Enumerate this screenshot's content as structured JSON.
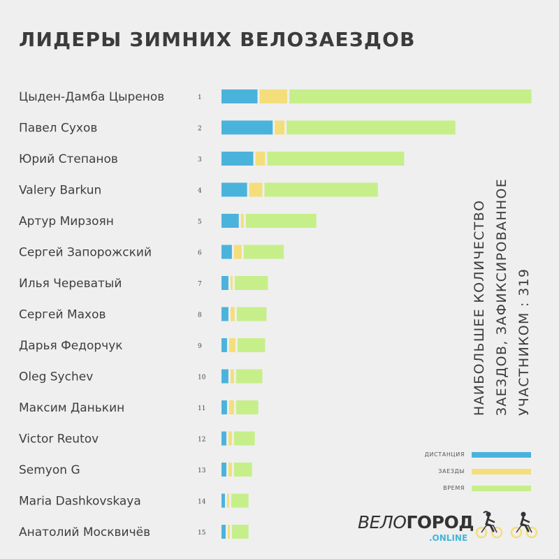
{
  "title": "ЛИДЕРЫ ЗИМНИХ ВЕЛОЗАЕЗДОВ",
  "side_note": [
    "НАИБОЛЬШЕЕ КОЛИЧЕСТВО",
    "ЗАЕЗДОВ, ЗАФИКСИРОВАННОЕ",
    "УЧАСТНИКОМ : 319"
  ],
  "colors": {
    "distance": "#4ab3dc",
    "rides": "#f4de7b",
    "time": "#c6ef8a",
    "background": "#efefef"
  },
  "logo": {
    "part1": "ВЕЛО",
    "part2": "ГОРОД",
    "sub": ".ONLINE"
  },
  "icons": [
    "cyclist-female-icon",
    "cyclist-male-icon"
  ],
  "chart_data": {
    "type": "bar",
    "orientation": "horizontal",
    "stacked": true,
    "title": "ЛИДЕРЫ ЗИМНИХ ВЕЛОЗАЕЗДОВ",
    "legend_position": "bottom-right",
    "legend": [
      "ДИСТАНЦИЯ",
      "ЗАЕЗДЫ",
      "ВРЕМЯ"
    ],
    "categories": [
      "Цыден-Дамба Цыренов",
      "Павел Сухов",
      "Юрий Степанов",
      "Valery Barkun",
      "Артур Мирзоян",
      "Сергей Запорожский",
      "Илья Череватый",
      "Сергей Махов",
      "Дарья Федорчук",
      "Oleg Sychev",
      "Максим Данькин",
      "Victor Reutov",
      "Semyon G",
      "Maria Dashkovskaya",
      "Анатолий Москвичёв"
    ],
    "ranks": [
      "1",
      "2",
      "3",
      "4",
      "5",
      "6",
      "7",
      "8",
      "9",
      "10",
      "11",
      "12",
      "13",
      "14",
      "15"
    ],
    "series": [
      {
        "name": "ДИСТАНЦИЯ",
        "values": [
          52,
          74,
          46,
          37,
          25,
          15,
          10,
          10,
          8,
          10,
          8,
          7,
          7,
          5,
          6
        ]
      },
      {
        "name": "ЗАЕЗДЫ",
        "values": [
          40,
          14,
          14,
          19,
          4,
          11,
          3,
          6,
          9,
          5,
          7,
          5,
          5,
          3,
          3
        ]
      },
      {
        "name": "ВРЕМЯ",
        "values": [
          350,
          244,
          198,
          164,
          102,
          58,
          48,
          43,
          40,
          38,
          32,
          30,
          26,
          25,
          24
        ]
      }
    ]
  }
}
